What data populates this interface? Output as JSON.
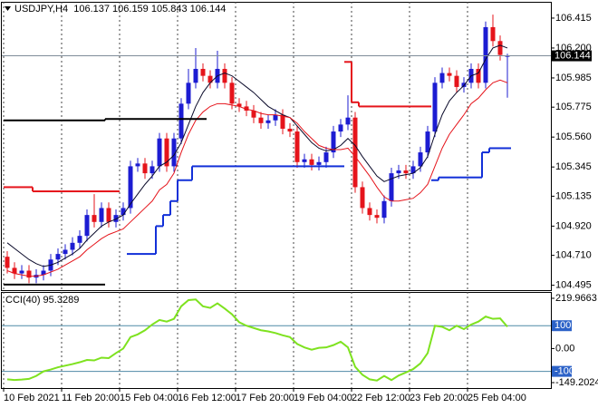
{
  "chart_data": [
    {
      "type": "candlestick",
      "title": "USDJPY,H4  106.137 106.159 105.843 106.144",
      "categories": [
        "10 Feb 2021",
        null,
        null,
        null,
        null,
        null,
        null,
        null,
        "11 Feb 20:00",
        null,
        null,
        null,
        null,
        null,
        null,
        null,
        "15 Feb 04:00",
        null,
        null,
        null,
        null,
        null,
        null,
        null,
        "16 Feb 12:00",
        null,
        null,
        null,
        null,
        null,
        null,
        null,
        "17 Feb 20:00",
        null,
        null,
        null,
        null,
        null,
        null,
        null,
        "19 Feb 04:00",
        null,
        null,
        null,
        null,
        null,
        null,
        null,
        "22 Feb 12:00",
        null,
        null,
        null,
        null,
        null,
        null,
        null,
        "23 Feb 20:00",
        null,
        null,
        null,
        null,
        null,
        null,
        null,
        "25 Feb 04:00",
        null,
        null,
        null,
        null,
        null
      ],
      "open": [
        104.7,
        104.62,
        104.58,
        104.6,
        104.55,
        104.57,
        104.6,
        104.68,
        104.72,
        104.75,
        104.8,
        104.85,
        105.0,
        104.95,
        105.05,
        104.95,
        105.0,
        105.05,
        105.35,
        105.37,
        105.3,
        105.35,
        105.55,
        105.35,
        105.55,
        105.8,
        105.95,
        106.05,
        106.0,
        105.95,
        106.05,
        105.95,
        105.8,
        105.78,
        105.75,
        105.7,
        105.66,
        105.68,
        105.72,
        105.62,
        105.6,
        105.38,
        105.4,
        105.36,
        105.38,
        105.45,
        105.6,
        105.65,
        105.7,
        105.2,
        105.05,
        105.0,
        104.98,
        105.1,
        105.3,
        105.32,
        105.3,
        105.35,
        105.45,
        105.6,
        105.95,
        106.02,
        106.0,
        105.92,
        105.95,
        106.05,
        105.95,
        106.35,
        106.25,
        106.137
      ],
      "high": [
        104.74,
        104.66,
        104.64,
        104.64,
        104.61,
        104.64,
        104.72,
        104.76,
        104.79,
        104.84,
        104.89,
        105.04,
        105.15,
        105.09,
        105.09,
        105.04,
        105.09,
        105.39,
        105.41,
        105.41,
        105.39,
        105.59,
        105.59,
        105.59,
        105.84,
        106.05,
        106.2,
        106.09,
        106.04,
        106.18,
        106.09,
        105.99,
        105.84,
        105.82,
        105.79,
        105.74,
        105.72,
        105.76,
        105.76,
        105.66,
        105.64,
        105.44,
        105.44,
        105.42,
        105.49,
        105.64,
        105.69,
        105.86,
        105.74,
        105.24,
        105.09,
        105.04,
        105.14,
        105.34,
        105.36,
        105.36,
        105.39,
        105.49,
        105.64,
        105.99,
        106.06,
        106.06,
        106.04,
        105.99,
        106.09,
        106.09,
        106.39,
        106.44,
        106.29,
        106.159
      ],
      "low": [
        104.58,
        104.54,
        104.54,
        104.51,
        104.51,
        104.53,
        104.56,
        104.64,
        104.68,
        104.71,
        104.76,
        104.81,
        104.91,
        104.91,
        104.91,
        104.91,
        104.96,
        105.01,
        105.31,
        105.26,
        105.26,
        105.31,
        105.31,
        105.31,
        105.51,
        105.76,
        105.91,
        105.96,
        105.91,
        105.91,
        105.91,
        105.76,
        105.74,
        105.71,
        105.66,
        105.62,
        105.62,
        105.64,
        105.58,
        105.56,
        105.34,
        105.34,
        105.32,
        105.32,
        105.34,
        105.41,
        105.56,
        105.61,
        105.16,
        105.01,
        104.96,
        104.94,
        104.94,
        105.06,
        105.26,
        105.26,
        105.26,
        105.31,
        105.41,
        105.56,
        105.91,
        105.96,
        105.88,
        105.88,
        105.91,
        105.91,
        105.91,
        106.21,
        106.11,
        105.843
      ],
      "close": [
        104.62,
        104.58,
        104.6,
        104.55,
        104.57,
        104.6,
        104.68,
        104.72,
        104.75,
        104.8,
        104.85,
        105.0,
        104.95,
        105.05,
        104.95,
        105.0,
        105.05,
        105.35,
        105.37,
        105.3,
        105.35,
        105.55,
        105.35,
        105.55,
        105.8,
        105.95,
        106.05,
        106.0,
        105.95,
        106.05,
        105.95,
        105.8,
        105.78,
        105.75,
        105.7,
        105.66,
        105.68,
        105.72,
        105.62,
        105.6,
        105.38,
        105.4,
        105.36,
        105.38,
        105.45,
        105.6,
        105.65,
        105.7,
        105.2,
        105.05,
        105.0,
        104.98,
        105.1,
        105.3,
        105.32,
        105.3,
        105.35,
        105.45,
        105.6,
        105.95,
        106.02,
        106.0,
        105.92,
        105.95,
        106.05,
        105.95,
        106.35,
        106.25,
        106.15,
        106.144
      ],
      "up_color": "#1c1cd2",
      "down_color": "#e5141b",
      "ylim": [
        104.46,
        106.532
      ],
      "yticks": [
        106.415,
        {
          "value": 106.2,
          "label": "106.200"
        },
        105.985,
        105.775,
        {
          "value": 105.56,
          "label": "105.560"
        },
        105.345,
        105.135,
        {
          "value": 104.92,
          "label": "104.920"
        },
        {
          "value": 104.71,
          "label": "104.710"
        },
        104.495
      ],
      "grid": "x",
      "series": [
        {
          "color": "#0a0a2a",
          "style": "line",
          "values": [
            104.8,
            104.76,
            104.72,
            104.68,
            104.65,
            104.63,
            104.64,
            104.66,
            104.69,
            104.72,
            104.76,
            104.82,
            104.87,
            104.92,
            104.95,
            104.97,
            105.0,
            105.08,
            105.15,
            105.22,
            105.28,
            105.35,
            105.38,
            105.43,
            105.52,
            105.65,
            105.78,
            105.88,
            105.95,
            106.0,
            106.02,
            106.0,
            105.96,
            105.92,
            105.88,
            105.83,
            105.78,
            105.75,
            105.72,
            105.7,
            105.64,
            105.58,
            105.52,
            105.48,
            105.46,
            105.47,
            105.5,
            105.55,
            105.5,
            105.42,
            105.35,
            105.28,
            105.24,
            105.26,
            105.28,
            105.29,
            105.3,
            105.34,
            105.42,
            105.58,
            105.72,
            105.82,
            105.88,
            105.93,
            106.0,
            106.02,
            106.12,
            106.2,
            106.22,
            106.2
          ]
        },
        {
          "color": "#e5141b",
          "style": "line",
          "values": [
            104.6,
            104.58,
            104.57,
            104.56,
            104.56,
            104.57,
            104.59,
            104.61,
            104.64,
            104.67,
            104.7,
            104.75,
            104.79,
            104.83,
            104.86,
            104.88,
            104.9,
            104.95,
            105.0,
            105.05,
            105.1,
            105.18,
            105.22,
            105.3,
            105.45,
            105.58,
            105.68,
            105.74,
            105.78,
            105.8,
            105.8,
            105.79,
            105.78,
            105.76,
            105.75,
            105.73,
            105.72,
            105.72,
            105.71,
            105.7,
            105.66,
            105.6,
            105.55,
            105.5,
            105.48,
            105.47,
            105.47,
            105.48,
            105.42,
            105.35,
            105.28,
            105.2,
            105.13,
            105.1,
            105.1,
            105.11,
            105.12,
            105.16,
            105.22,
            105.35,
            105.48,
            105.58,
            105.65,
            105.72,
            105.8,
            105.84,
            105.9,
            105.95,
            105.97,
            105.95
          ]
        },
        {
          "color": "#1230d8",
          "style": "step",
          "values": [
            null,
            null,
            null,
            null,
            null,
            null,
            null,
            null,
            null,
            null,
            null,
            null,
            null,
            null,
            null,
            null,
            null,
            104.72,
            104.72,
            104.72,
            104.72,
            104.92,
            105.0,
            105.1,
            105.25,
            105.25,
            105.35,
            105.35,
            105.35,
            105.35,
            105.35,
            105.35,
            105.35,
            105.35,
            105.35,
            105.35,
            105.35,
            105.35,
            105.35,
            105.35,
            105.35,
            105.35,
            105.35,
            105.35,
            105.35,
            105.35,
            105.35,
            null,
            null,
            null,
            null,
            null,
            null,
            null,
            null,
            null,
            null,
            null,
            null,
            105.25,
            105.27,
            105.27,
            105.27,
            105.27,
            105.27,
            105.27,
            105.45,
            105.48,
            105.48,
            105.48
          ]
        },
        {
          "color": "#e5141b",
          "style": "step",
          "values": [
            105.2,
            105.2,
            105.2,
            105.2,
            105.17,
            105.17,
            105.17,
            105.17,
            105.17,
            105.17,
            105.17,
            105.17,
            105.17,
            105.17,
            105.17,
            105.17,
            null,
            null,
            null,
            null,
            null,
            null,
            null,
            null,
            null,
            null,
            null,
            null,
            null,
            null,
            null,
            null,
            null,
            null,
            null,
            null,
            null,
            null,
            null,
            null,
            null,
            null,
            null,
            null,
            null,
            null,
            null,
            106.1,
            105.81,
            105.78,
            105.78,
            105.78,
            105.78,
            105.78,
            105.78,
            105.78,
            105.78,
            105.78,
            105.78,
            null,
            null,
            null,
            null,
            null,
            null,
            null,
            null,
            null,
            null,
            null
          ]
        },
        {
          "color": "#000000",
          "style": "step",
          "values": [
            105.68,
            105.68,
            105.68,
            105.68,
            105.68,
            105.68,
            105.68,
            105.68,
            105.68,
            105.68,
            105.68,
            105.68,
            105.68,
            105.68,
            105.69,
            105.69,
            105.69,
            105.69,
            105.69,
            105.69,
            105.69,
            105.69,
            105.69,
            105.69,
            105.69,
            105.69,
            105.69,
            105.69,
            null,
            null,
            null,
            null,
            null,
            null,
            null,
            null,
            null,
            null,
            null,
            null,
            null,
            null,
            null,
            null,
            null,
            null,
            null,
            null,
            null,
            null,
            null,
            null,
            null,
            null,
            null,
            null,
            null,
            null,
            null,
            null,
            null,
            null,
            null,
            null,
            null,
            null,
            null,
            null,
            null,
            null
          ]
        },
        {
          "color": "#000000",
          "style": "step",
          "values": [
            104.5,
            104.5,
            104.5,
            104.5,
            104.5,
            104.5,
            104.5,
            104.5,
            104.5,
            104.5,
            104.5,
            104.5,
            104.5,
            104.5,
            null,
            null,
            null,
            null,
            null,
            null,
            null,
            null,
            null,
            null,
            null,
            null,
            null,
            null,
            null,
            null,
            null,
            null,
            null,
            null,
            null,
            null,
            null,
            null,
            null,
            null,
            null,
            null,
            null,
            null,
            null,
            null,
            null,
            null,
            null,
            null,
            null,
            null,
            null,
            null,
            null,
            null,
            null,
            null,
            null,
            null,
            null,
            null,
            null,
            null,
            null,
            null,
            null,
            null,
            null,
            null
          ]
        }
      ]
    },
    {
      "type": "line",
      "title": "CCI(40) 95.3289",
      "ylim": [
        -149.2024,
        219.9663
      ],
      "yticks": [
        219.9663,
        {
          "value": 0,
          "label": "0.00"
        },
        -149.2024
      ],
      "levels": [
        100,
        -100
      ],
      "level_color": "#4f8aa6",
      "series": [
        {
          "color": "#7ee21f",
          "style": "line",
          "values": [
            -135,
            -138,
            -136,
            -133,
            -120,
            -100,
            -92,
            -82,
            -75,
            -68,
            -60,
            -50,
            -52,
            -40,
            -42,
            -20,
            0,
            50,
            62,
            80,
            105,
            125,
            118,
            130,
            185,
            212,
            215,
            185,
            178,
            198,
            175,
            150,
            115,
            100,
            90,
            80,
            75,
            68,
            58,
            50,
            20,
            5,
            -5,
            3,
            5,
            15,
            30,
            5,
            -80,
            -115,
            -135,
            -140,
            -120,
            -138,
            -118,
            -105,
            -90,
            -65,
            -20,
            100,
            95,
            80,
            100,
            85,
            105,
            118,
            140,
            130,
            132,
            95.3289
          ]
        }
      ]
    }
  ]
}
